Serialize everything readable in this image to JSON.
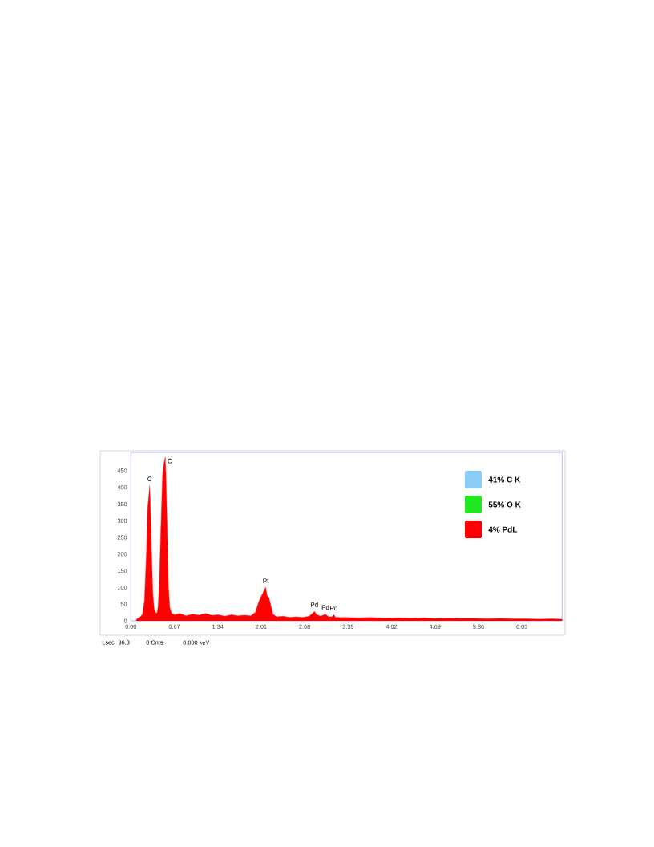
{
  "chart_data": {
    "type": "area",
    "x": [
      0.08,
      0.1,
      0.14,
      0.18,
      0.21,
      0.24,
      0.26,
      0.28,
      0.29,
      0.3,
      0.32,
      0.34,
      0.36,
      0.38,
      0.4,
      0.42,
      0.44,
      0.47,
      0.49,
      0.51,
      0.53,
      0.54,
      0.56,
      0.58,
      0.6,
      0.63,
      0.67,
      0.75,
      0.85,
      0.95,
      1.05,
      1.15,
      1.25,
      1.35,
      1.45,
      1.55,
      1.65,
      1.75,
      1.85,
      1.92,
      1.97,
      2.0,
      2.03,
      2.06,
      2.08,
      2.1,
      2.13,
      2.16,
      2.19,
      2.25,
      2.35,
      2.45,
      2.55,
      2.65,
      2.75,
      2.8,
      2.83,
      2.87,
      2.93,
      3.0,
      3.05,
      3.1,
      3.13,
      3.16,
      3.3,
      3.5,
      3.7,
      3.9,
      4.1,
      4.3,
      4.5,
      4.7,
      4.9,
      5.1,
      5.3,
      5.5,
      5.7,
      5.9,
      6.1,
      6.3,
      6.5,
      6.65
    ],
    "series": [
      {
        "color": "#ff0000",
        "values": [
          0,
          8,
          10,
          20,
          60,
          200,
          340,
          380,
          405,
          350,
          200,
          80,
          35,
          25,
          22,
          40,
          120,
          320,
          440,
          470,
          490,
          440,
          280,
          100,
          40,
          22,
          18,
          22,
          15,
          20,
          17,
          22,
          16,
          18,
          14,
          18,
          15,
          17,
          15,
          25,
          55,
          70,
          80,
          95,
          100,
          75,
          70,
          45,
          20,
          12,
          14,
          10,
          12,
          10,
          14,
          22,
          28,
          18,
          14,
          20,
          12,
          12,
          18,
          10,
          10,
          9,
          10,
          8,
          9,
          8,
          9,
          7,
          8,
          7,
          7,
          6,
          7,
          6,
          6,
          5,
          6,
          5
        ]
      }
    ],
    "xlim": [
      0,
      6.65
    ],
    "ylim": [
      0,
      505
    ],
    "xticks": [
      {
        "value": 0,
        "label": "0.00"
      },
      0.67,
      1.34,
      2.01,
      2.68,
      3.35,
      4.02,
      4.69,
      5.36,
      6.03
    ],
    "yticks": [
      0,
      50,
      100,
      150,
      200,
      250,
      300,
      350,
      400,
      450
    ],
    "annotations": [
      {
        "text": "C",
        "x": 0.29,
        "y": 405
      },
      {
        "text": "O",
        "x": 0.53,
        "y": 490
      },
      {
        "text": "Pt",
        "x": 2.08,
        "y": 100
      },
      {
        "text": "Pd",
        "x": 2.83,
        "y": 28
      },
      {
        "text": "Pd",
        "x": 3.0,
        "y": 20
      },
      {
        "text": "Pd",
        "x": 3.13,
        "y": 18
      },
      "41%  C K",
      "55%  O K",
      "4%  PdL",
      "Lsec: 96.3",
      "0 Cnts",
      "0.000 keV"
    ]
  }
}
